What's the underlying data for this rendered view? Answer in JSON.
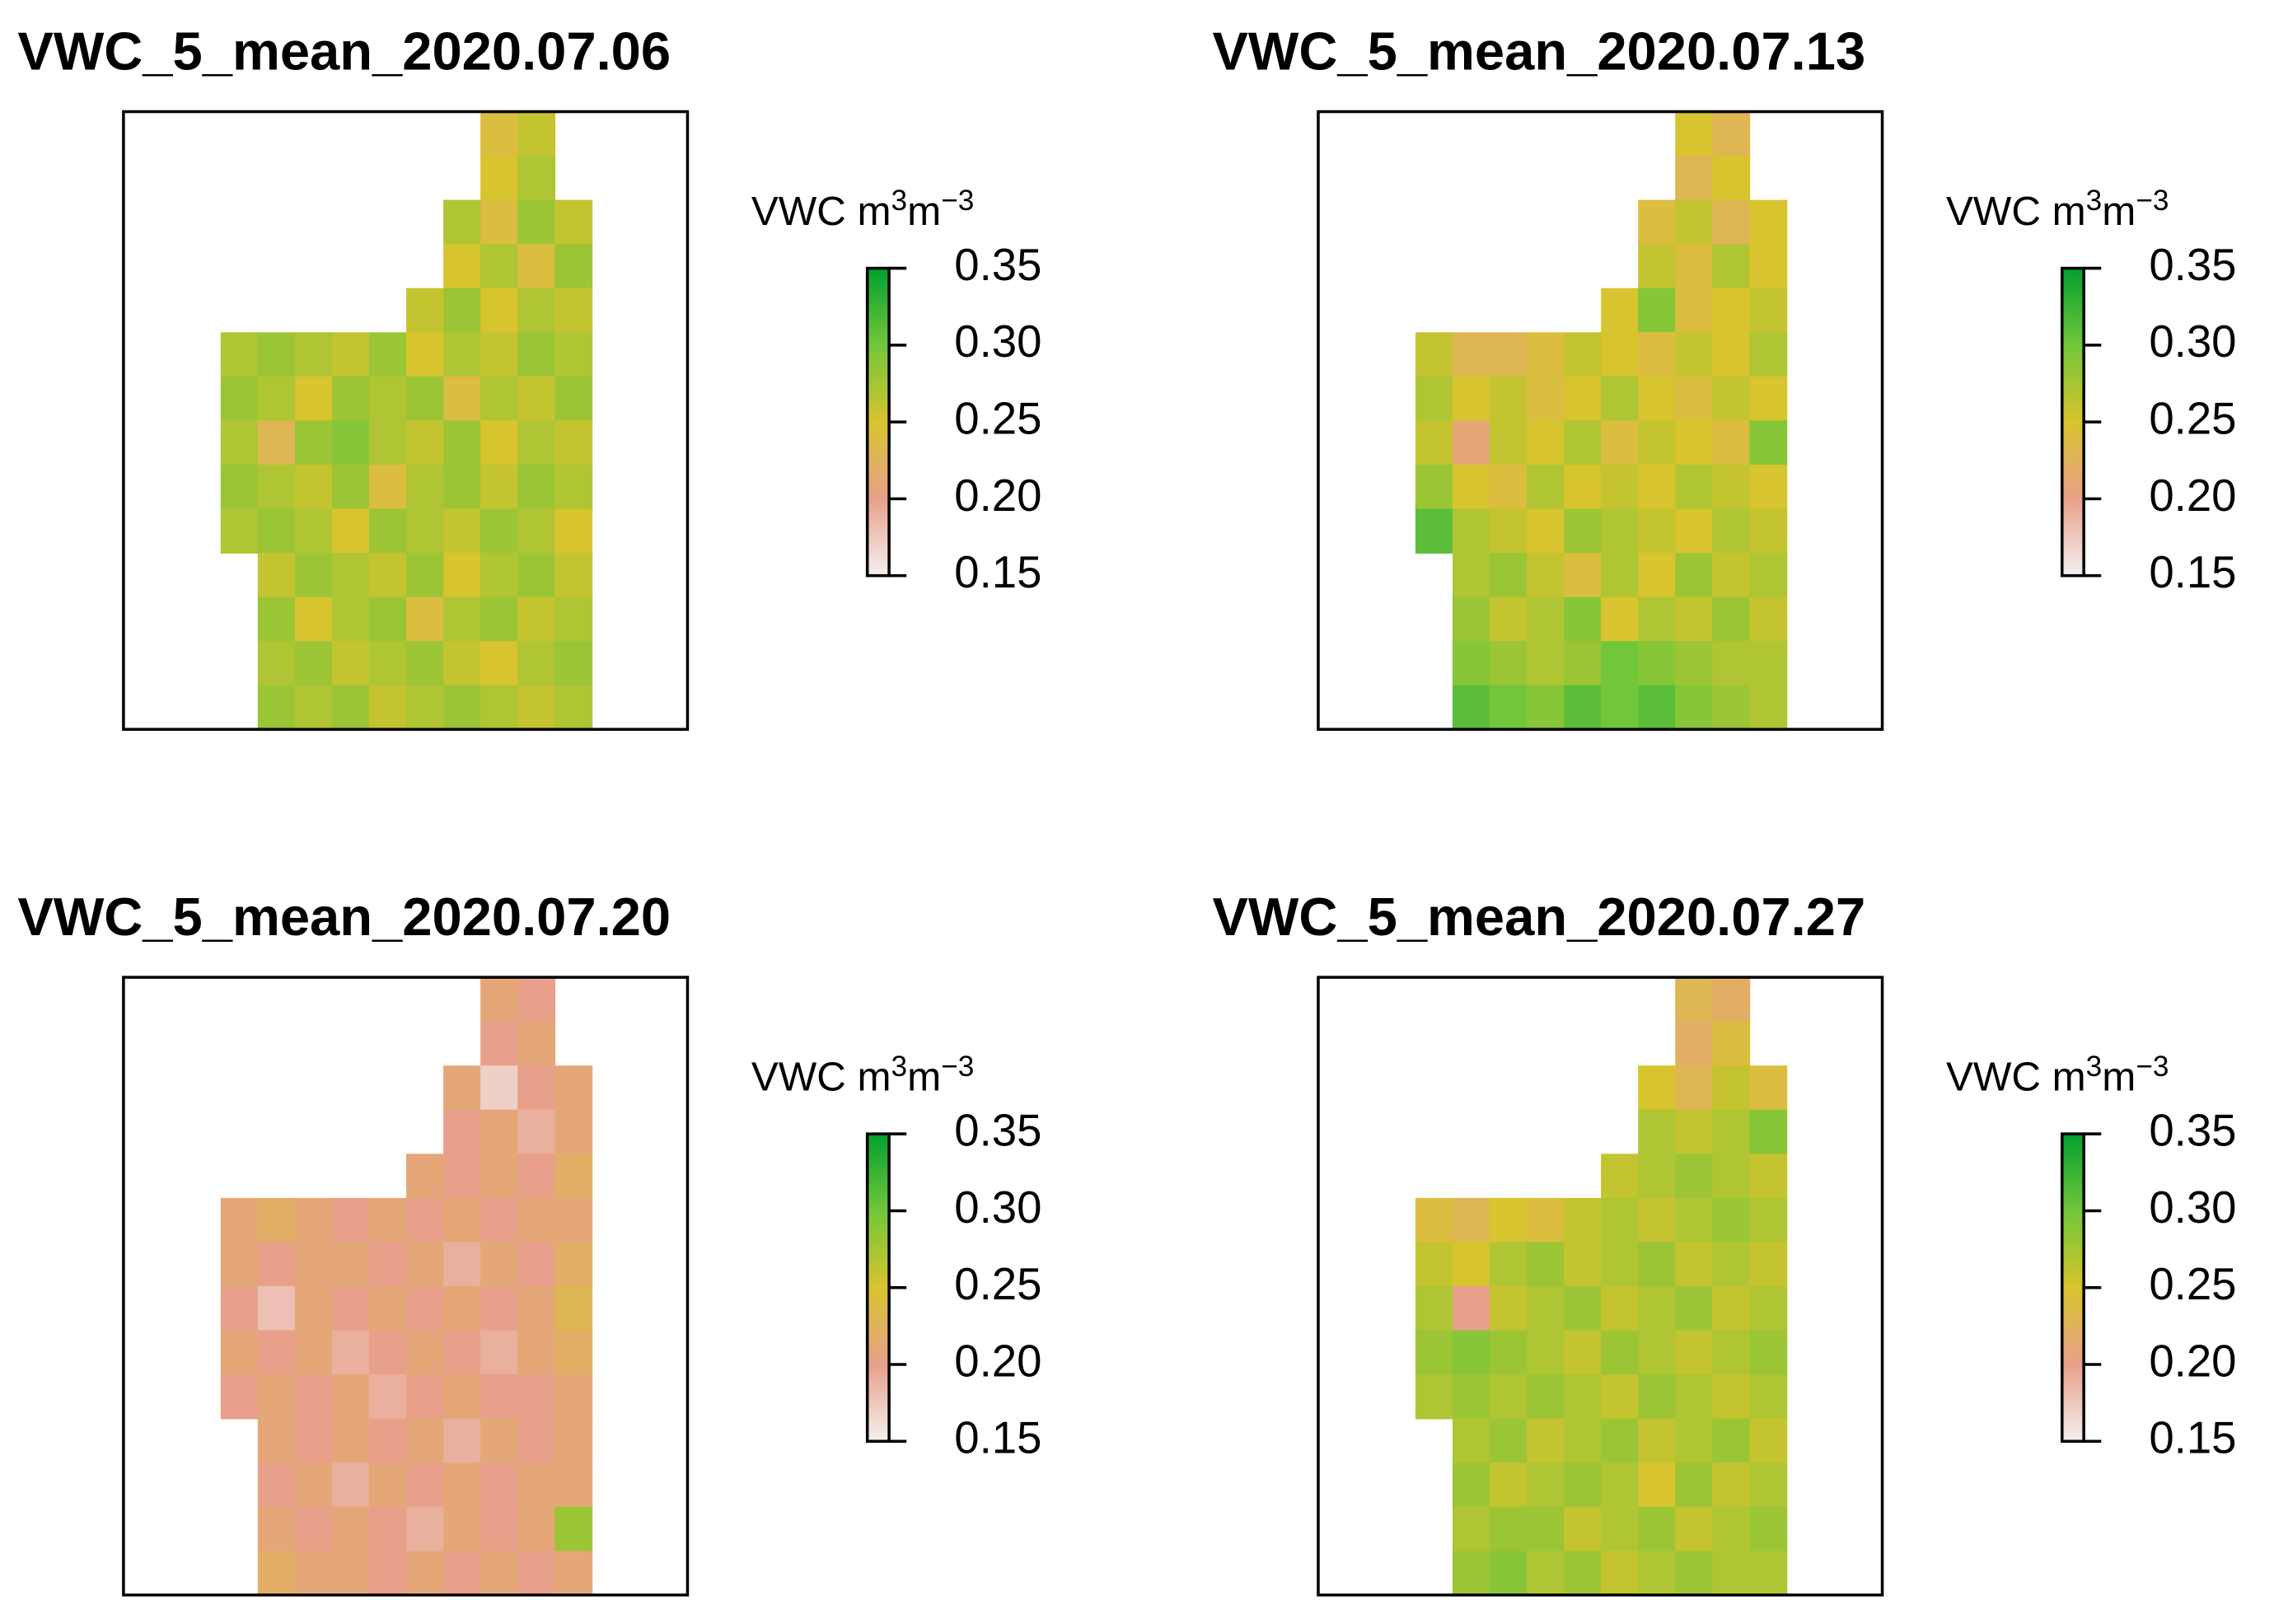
{
  "chart_data": [
    {
      "type": "heatmap",
      "title": "VWC_5_mean_2020.07.06",
      "legend_title": [
        "VWC m",
        "3",
        "m",
        "−3"
      ],
      "clim": [
        0.15,
        0.35
      ],
      "cticks": [
        0.15,
        {
          "value": 0.2,
          "label": "0.20"
        },
        0.25,
        {
          "value": 0.3,
          "label": "0.30"
        },
        0.35
      ],
      "colors": [
        "#f4f0f0",
        "#e8a08a",
        "#d8c42e",
        "#72c63a",
        "#02a02e"
      ],
      "values": [
        [
          null,
          null,
          null,
          null,
          null,
          null,
          null,
          0.24,
          0.26,
          null
        ],
        [
          null,
          null,
          null,
          null,
          null,
          null,
          null,
          0.25,
          0.27,
          null
        ],
        [
          null,
          null,
          null,
          null,
          null,
          null,
          0.27,
          0.24,
          0.28,
          0.26
        ],
        [
          null,
          null,
          null,
          null,
          null,
          null,
          0.25,
          0.27,
          0.24,
          0.28
        ],
        [
          null,
          null,
          null,
          null,
          null,
          0.26,
          0.28,
          0.25,
          0.27,
          0.26
        ],
        [
          0.27,
          0.28,
          0.27,
          0.26,
          0.28,
          0.25,
          0.27,
          0.26,
          0.28,
          0.27
        ],
        [
          0.28,
          0.27,
          0.25,
          0.28,
          0.27,
          0.28,
          0.24,
          0.27,
          0.26,
          0.28
        ],
        [
          0.27,
          0.23,
          0.28,
          0.29,
          0.27,
          0.26,
          0.28,
          0.25,
          0.27,
          0.26
        ],
        [
          0.28,
          0.27,
          0.26,
          0.28,
          0.24,
          0.27,
          0.28,
          0.26,
          0.28,
          0.27
        ],
        [
          0.27,
          0.28,
          0.27,
          0.25,
          0.28,
          0.27,
          0.26,
          0.28,
          0.27,
          0.25
        ],
        [
          null,
          0.26,
          0.28,
          0.27,
          0.26,
          0.28,
          0.25,
          0.27,
          0.28,
          0.26
        ],
        [
          null,
          0.28,
          0.25,
          0.27,
          0.28,
          0.24,
          0.27,
          0.28,
          0.26,
          0.27
        ],
        [
          null,
          0.27,
          0.28,
          0.26,
          0.27,
          0.28,
          0.26,
          0.25,
          0.27,
          0.28
        ],
        [
          null,
          0.28,
          0.27,
          0.28,
          0.26,
          0.27,
          0.28,
          0.27,
          0.26,
          0.27
        ]
      ]
    },
    {
      "type": "heatmap",
      "title": "VWC_5_mean_2020.07.13",
      "legend_title": [
        "VWC m",
        "3",
        "m",
        "−3"
      ],
      "clim": [
        0.15,
        0.35
      ],
      "cticks": [
        0.15,
        {
          "value": 0.2,
          "label": "0.20"
        },
        0.25,
        {
          "value": 0.3,
          "label": "0.30"
        },
        0.35
      ],
      "colors": [
        "#f4f0f0",
        "#e8a08a",
        "#d8c42e",
        "#72c63a",
        "#02a02e"
      ],
      "values": [
        [
          null,
          null,
          null,
          null,
          null,
          null,
          null,
          0.25,
          0.23,
          null
        ],
        [
          null,
          null,
          null,
          null,
          null,
          null,
          null,
          0.23,
          0.25,
          null
        ],
        [
          null,
          null,
          null,
          null,
          null,
          null,
          0.24,
          0.26,
          0.23,
          0.25
        ],
        [
          null,
          null,
          null,
          null,
          null,
          null,
          0.26,
          0.24,
          0.27,
          0.25
        ],
        [
          null,
          null,
          null,
          null,
          null,
          0.25,
          0.29,
          0.24,
          0.25,
          0.26
        ],
        [
          0.26,
          0.23,
          0.23,
          0.24,
          0.26,
          0.25,
          0.24,
          0.26,
          0.25,
          0.27
        ],
        [
          0.27,
          0.25,
          0.26,
          0.24,
          0.25,
          0.27,
          0.25,
          0.24,
          0.26,
          0.25
        ],
        [
          0.26,
          0.21,
          0.26,
          0.25,
          0.27,
          0.24,
          0.26,
          0.25,
          0.24,
          0.29
        ],
        [
          0.28,
          0.25,
          0.24,
          0.27,
          0.25,
          0.26,
          0.25,
          0.27,
          0.26,
          0.25
        ],
        [
          0.31,
          0.27,
          0.26,
          0.25,
          0.28,
          0.27,
          0.26,
          0.25,
          0.27,
          0.26
        ],
        [
          null,
          0.27,
          0.28,
          0.26,
          0.24,
          0.27,
          0.25,
          0.28,
          0.26,
          0.27
        ],
        [
          null,
          0.28,
          0.26,
          0.27,
          0.29,
          0.25,
          0.27,
          0.26,
          0.28,
          0.26
        ],
        [
          null,
          0.29,
          0.28,
          0.27,
          0.28,
          0.3,
          0.29,
          0.28,
          0.27,
          0.27
        ],
        [
          null,
          0.31,
          0.3,
          0.29,
          0.31,
          0.3,
          0.31,
          0.29,
          0.28,
          0.27
        ]
      ]
    },
    {
      "type": "heatmap",
      "title": "VWC_5_mean_2020.07.20",
      "legend_title": [
        "VWC m",
        "3",
        "m",
        "−3"
      ],
      "clim": [
        0.15,
        0.35
      ],
      "cticks": [
        0.15,
        {
          "value": 0.2,
          "label": "0.20"
        },
        0.25,
        {
          "value": 0.3,
          "label": "0.30"
        },
        0.35
      ],
      "colors": [
        "#f4f0f0",
        "#e8a08a",
        "#d8c42e",
        "#72c63a",
        "#02a02e"
      ],
      "values": [
        [
          null,
          null,
          null,
          null,
          null,
          null,
          null,
          0.21,
          0.2,
          null
        ],
        [
          null,
          null,
          null,
          null,
          null,
          null,
          null,
          0.2,
          0.21,
          null
        ],
        [
          null,
          null,
          null,
          null,
          null,
          null,
          0.21,
          0.17,
          0.2,
          0.21
        ],
        [
          null,
          null,
          null,
          null,
          null,
          null,
          0.2,
          0.21,
          0.19,
          0.21
        ],
        [
          null,
          null,
          null,
          null,
          null,
          0.21,
          0.2,
          0.21,
          0.2,
          0.22
        ],
        [
          0.21,
          0.22,
          0.21,
          0.2,
          0.21,
          0.2,
          0.21,
          0.2,
          0.21,
          0.21
        ],
        [
          0.21,
          0.2,
          0.21,
          0.21,
          0.2,
          0.21,
          0.19,
          0.21,
          0.2,
          0.22
        ],
        [
          0.2,
          0.18,
          0.21,
          0.2,
          0.21,
          0.2,
          0.21,
          0.2,
          0.21,
          0.23
        ],
        [
          0.21,
          0.2,
          0.21,
          0.19,
          0.2,
          0.21,
          0.2,
          0.19,
          0.21,
          0.22
        ],
        [
          0.2,
          0.21,
          0.2,
          0.21,
          0.19,
          0.2,
          0.21,
          0.2,
          0.2,
          0.21
        ],
        [
          null,
          0.21,
          0.2,
          0.21,
          0.2,
          0.21,
          0.19,
          0.21,
          0.2,
          0.21
        ],
        [
          null,
          0.2,
          0.21,
          0.19,
          0.21,
          0.2,
          0.21,
          0.2,
          0.21,
          0.21
        ],
        [
          null,
          0.21,
          0.2,
          0.21,
          0.2,
          0.19,
          0.21,
          0.2,
          0.21,
          0.28
        ],
        [
          null,
          0.22,
          0.21,
          0.21,
          0.2,
          0.21,
          0.2,
          0.21,
          0.2,
          0.21
        ]
      ]
    },
    {
      "type": "heatmap",
      "title": "VWC_5_mean_2020.07.27",
      "legend_title": [
        "VWC m",
        "3",
        "m",
        "−3"
      ],
      "clim": [
        0.15,
        0.35
      ],
      "cticks": [
        0.15,
        {
          "value": 0.2,
          "label": "0.20"
        },
        0.25,
        {
          "value": 0.3,
          "label": "0.30"
        },
        0.35
      ],
      "colors": [
        "#f4f0f0",
        "#e8a08a",
        "#d8c42e",
        "#72c63a",
        "#02a02e"
      ],
      "values": [
        [
          null,
          null,
          null,
          null,
          null,
          null,
          null,
          0.23,
          0.22,
          null
        ],
        [
          null,
          null,
          null,
          null,
          null,
          null,
          null,
          0.22,
          0.24,
          null
        ],
        [
          null,
          null,
          null,
          null,
          null,
          null,
          0.25,
          0.23,
          0.26,
          0.24
        ],
        [
          null,
          null,
          null,
          null,
          null,
          null,
          0.27,
          0.26,
          0.27,
          0.29
        ],
        [
          null,
          null,
          null,
          null,
          null,
          0.26,
          0.27,
          0.28,
          0.27,
          0.26
        ],
        [
          0.24,
          0.23,
          0.25,
          0.24,
          0.26,
          0.27,
          0.26,
          0.27,
          0.28,
          0.27
        ],
        [
          0.26,
          0.25,
          0.27,
          0.28,
          0.26,
          0.27,
          0.28,
          0.26,
          0.27,
          0.26
        ],
        [
          0.27,
          0.2,
          0.26,
          0.27,
          0.28,
          0.26,
          0.27,
          0.28,
          0.26,
          0.27
        ],
        [
          0.28,
          0.29,
          0.28,
          0.27,
          0.26,
          0.28,
          0.27,
          0.26,
          0.27,
          0.28
        ],
        [
          0.27,
          0.28,
          0.27,
          0.28,
          0.27,
          0.26,
          0.28,
          0.27,
          0.26,
          0.27
        ],
        [
          null,
          0.27,
          0.28,
          0.26,
          0.27,
          0.28,
          0.26,
          0.27,
          0.28,
          0.26
        ],
        [
          null,
          0.28,
          0.26,
          0.27,
          0.28,
          0.27,
          0.25,
          0.28,
          0.26,
          0.27
        ],
        [
          null,
          0.27,
          0.28,
          0.28,
          0.26,
          0.27,
          0.28,
          0.26,
          0.27,
          0.28
        ],
        [
          null,
          0.28,
          0.29,
          0.27,
          0.28,
          0.26,
          0.27,
          0.28,
          0.27,
          0.27
        ]
      ]
    }
  ]
}
